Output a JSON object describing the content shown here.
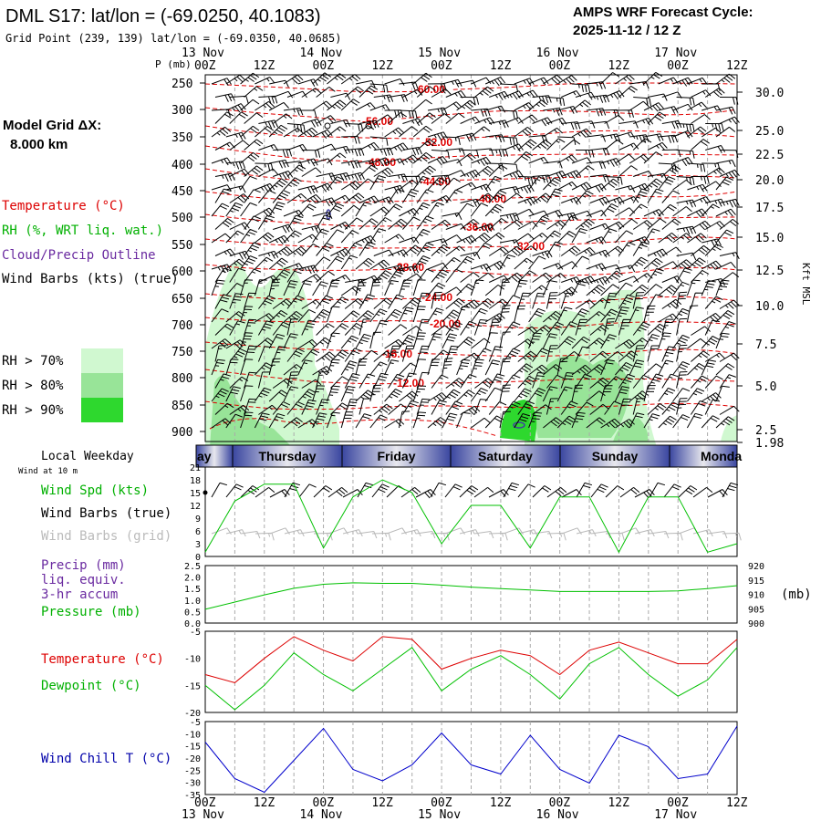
{
  "header": {
    "station": "DML S17:  lat/lon = (-69.0250, 40.1083)",
    "gridpoint": "Grid Point (239, 139) lat/lon = (-69.0350, 40.0685)",
    "cycle_title": "AMPS WRF Forecast Cycle:",
    "cycle_time": "2025-11-12 / 12  Z"
  },
  "left_panel": {
    "grid_label": "Model Grid ΔX:",
    "grid_value": "8.000 km",
    "legend_temperature": "Temperature (°C)",
    "legend_rh": "RH (%, WRT liq. wat.)",
    "legend_cloud": "Cloud/Precip Outline",
    "legend_wind": "Wind Barbs (kts) (true)",
    "rh_levels": [
      {
        "label": "RH > 70%",
        "color": "#d0f8d0"
      },
      {
        "label": "RH > 80%",
        "color": "#98e498"
      },
      {
        "label": "RH > 90%",
        "color": "#2ed82e"
      }
    ],
    "local_weekday": "Local Weekday",
    "wind_10m": "Wind at 10 m",
    "wind_speed_label": "Wind Spd (kts)",
    "wind_barbs_true": "Wind Barbs (true)",
    "wind_barbs_grid": "Wind Barbs (grid)",
    "precip_label": "Precip (mm)",
    "precip_l2": "liq. equiv.",
    "precip_l3": "3-hr accum",
    "pressure_label": "Pressure (mb)",
    "temp_label": "Temperature (°C)",
    "dew_label": "Dewpoint (°C)",
    "windchill_label": "Wind Chill T (°C)"
  },
  "time_axis": {
    "top_dates": [
      "13 Nov",
      "14 Nov",
      "15 Nov",
      "16 Nov",
      "17 Nov"
    ],
    "hour_labels": [
      "00Z",
      "12Z",
      "00Z",
      "12Z",
      "00Z",
      "12Z",
      "00Z",
      "12Z",
      "00Z",
      "12Z"
    ],
    "weekdays": [
      "ay",
      "Thursday",
      "Friday",
      "Saturday",
      "Sunday",
      "Monda"
    ]
  },
  "chart_data": [
    {
      "type": "heatmap",
      "name": "vertical cross section",
      "ylabel": "P (mb)",
      "ylabel_right": "Kft MSL",
      "pressure_ticks": [
        "250",
        "300",
        "350",
        "400",
        "450",
        "500",
        "550",
        "600",
        "650",
        "700",
        "750",
        "800",
        "850",
        "900"
      ],
      "height_ticks": [
        "30.0",
        "25.0",
        "22.5",
        "20.0",
        "17.5",
        "15.0",
        "12.5",
        "10.0",
        "7.5",
        "5.0",
        "2.5",
        "1.98"
      ],
      "isotherm_labels": [
        "-60.00",
        "-56.00",
        "-52.00",
        "-48.00",
        "-44.00",
        "-40.00",
        "-36.00",
        "-32.00",
        "-28.00",
        "-24.00",
        "-20.00",
        "-16.00",
        "-12.00"
      ]
    },
    {
      "type": "line",
      "name": "wind speed",
      "yticks": [
        "21",
        "18",
        "15",
        "12",
        "9",
        "6",
        "3",
        "0"
      ],
      "ylim": [
        0,
        21
      ],
      "x_hours": [
        0,
        6,
        12,
        18,
        24,
        30,
        36,
        42,
        48,
        54,
        60,
        66,
        72,
        78,
        84,
        90,
        96,
        102,
        108
      ],
      "values": [
        1,
        13,
        17,
        17,
        2,
        14,
        18,
        15,
        3,
        12,
        12,
        2,
        14,
        14,
        1,
        14,
        14,
        1,
        3
      ],
      "color": "#00c000"
    },
    {
      "type": "line",
      "name": "pressure",
      "yticks_left": [
        "2.5",
        "2.0",
        "1.5",
        "1.0",
        "0.5",
        "0.0"
      ],
      "yticks_right": [
        "920",
        "915",
        "910",
        "905",
        "900"
      ],
      "ylabel_right": "(mb)",
      "ylim": [
        900,
        920
      ],
      "x_hours": [
        0,
        6,
        12,
        18,
        24,
        30,
        36,
        42,
        48,
        54,
        60,
        66,
        72,
        78,
        84,
        90,
        96,
        102,
        108
      ],
      "values": [
        904.8,
        907.3,
        909.8,
        912.1,
        913.5,
        914.0,
        913.8,
        913.8,
        913.2,
        912.5,
        912.0,
        911.5,
        911.0,
        911.0,
        911.0,
        911.0,
        911.2,
        912.0,
        913.0
      ],
      "color": "#00c000"
    },
    {
      "type": "line",
      "name": "temperature and dewpoint",
      "yticks": [
        "-5",
        "-10",
        "-15",
        "-20"
      ],
      "ylim": [
        -20,
        -5
      ],
      "x_hours": [
        0,
        6,
        12,
        18,
        24,
        30,
        36,
        42,
        48,
        54,
        60,
        66,
        72,
        78,
        84,
        90,
        96,
        102,
        108
      ],
      "series": [
        {
          "name": "Temperature",
          "color": "#dd0000",
          "values": [
            -13,
            -14.5,
            -10,
            -6,
            -8.5,
            -10.5,
            -6,
            -6.5,
            -12,
            -10,
            -8.5,
            -9.5,
            -13,
            -8.5,
            -7,
            -9,
            -11,
            -11,
            -6.5
          ]
        },
        {
          "name": "Dewpoint",
          "color": "#00c000",
          "values": [
            -15,
            -19.5,
            -15,
            -9,
            -13,
            -16,
            -12,
            -8,
            -16,
            -12,
            -9.5,
            -13,
            -17.5,
            -11,
            -8,
            -13,
            -17,
            -14,
            -8
          ]
        }
      ]
    },
    {
      "type": "line",
      "name": "wind chill",
      "yticks": [
        "-5",
        "-10",
        "-15",
        "-20",
        "-25",
        "-30",
        "-35"
      ],
      "ylim": [
        -35,
        -3
      ],
      "x_hours": [
        0,
        6,
        12,
        18,
        24,
        30,
        36,
        42,
        48,
        54,
        60,
        66,
        72,
        78,
        84,
        90,
        96,
        102,
        108
      ],
      "values": [
        -12,
        -28,
        -34,
        -20,
        -6,
        -24,
        -29,
        -22,
        -8,
        -22,
        -26,
        -9,
        -24,
        -30,
        -9,
        -14,
        -28,
        -26,
        -5
      ],
      "color": "#0000cc"
    }
  ]
}
